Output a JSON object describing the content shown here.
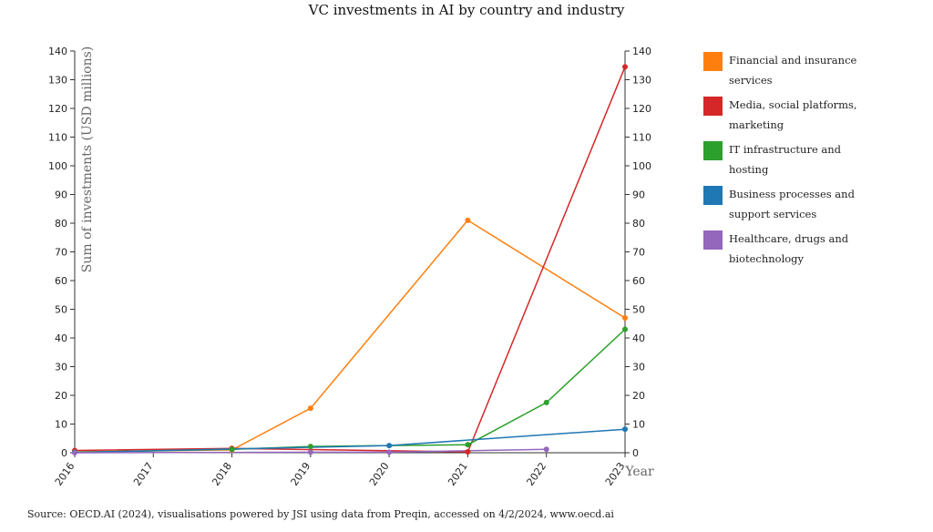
{
  "title": "VC investments in AI by country and industry",
  "source": "Source: OECD.AI (2024), visualisations powered by JSI using data from Preqin, accessed on 4/2/2024, www.oecd.ai",
  "chart_data": {
    "type": "line",
    "title": "VC investments in AI by country and industry",
    "xlabel": "Year",
    "ylabel": "Sum of investments (USD millions)",
    "x": [
      "2016",
      "2017",
      "2018",
      "2019",
      "2020",
      "2021",
      "2022",
      "2023"
    ],
    "ylim": [
      0,
      140
    ],
    "yticks": [
      0,
      10,
      20,
      30,
      40,
      50,
      60,
      70,
      80,
      90,
      100,
      110,
      120,
      130,
      140
    ],
    "grid": false,
    "legend_position": "right",
    "series": [
      {
        "name": "Financial and insurance services",
        "color": "#ff7f0e",
        "points": [
          [
            "2016",
            0.3
          ],
          [
            "2018",
            1.0
          ],
          [
            "2019",
            15.5
          ],
          [
            "2021",
            81.0
          ],
          [
            "2023",
            47.0
          ]
        ]
      },
      {
        "name": "Media, social platforms, marketing",
        "color": "#d62728",
        "points": [
          [
            "2016",
            0.8
          ],
          [
            "2018",
            1.5
          ],
          [
            "2021",
            0.3
          ],
          [
            "2023",
            134.5
          ]
        ]
      },
      {
        "name": "IT infrastructure and hosting",
        "color": "#2ca02c",
        "points": [
          [
            "2016",
            0.2
          ],
          [
            "2018",
            1.2
          ],
          [
            "2019",
            2.2
          ],
          [
            "2021",
            2.8
          ],
          [
            "2022",
            17.5
          ],
          [
            "2023",
            43.0
          ]
        ]
      },
      {
        "name": "Business processes and support services",
        "color": "#1f77b4",
        "points": [
          [
            "2016",
            0.1
          ],
          [
            "2020",
            2.5
          ],
          [
            "2023",
            8.2
          ]
        ]
      },
      {
        "name": "Healthcare, drugs and biotechnology",
        "color": "#9467bd",
        "points": [
          [
            "2016",
            0.0
          ],
          [
            "2019",
            0.2
          ],
          [
            "2020",
            0.2
          ],
          [
            "2022",
            1.2
          ]
        ]
      }
    ],
    "legend": [
      {
        "line1": "Financial and insurance",
        "line2": "services",
        "color": "#ff7f0e"
      },
      {
        "line1": "Media, social platforms,",
        "line2": "marketing",
        "color": "#d62728"
      },
      {
        "line1": "IT infrastructure and",
        "line2": "hosting",
        "color": "#2ca02c"
      },
      {
        "line1": "Business processes and",
        "line2": "support services",
        "color": "#1f77b4"
      },
      {
        "line1": "Healthcare, drugs and",
        "line2": "biotechnology",
        "color": "#9467bd"
      }
    ]
  }
}
